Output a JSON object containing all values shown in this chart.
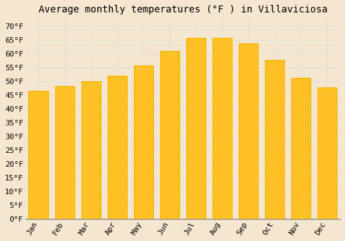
{
  "title": "Average monthly temperatures (°F ) in Villaviciosa",
  "months": [
    "Jan",
    "Feb",
    "Mar",
    "Apr",
    "May",
    "Jun",
    "Jul",
    "Aug",
    "Sep",
    "Oct",
    "Nov",
    "Dec"
  ],
  "values": [
    46.4,
    48.2,
    50.0,
    52.0,
    55.9,
    61.0,
    65.8,
    65.8,
    63.7,
    57.9,
    51.3,
    47.7
  ],
  "bar_color": "#FFC125",
  "bar_edge_color": "#FFB200",
  "background_color": "#F5E6D0",
  "grid_color": "#DDDDDD",
  "yticks": [
    0,
    5,
    10,
    15,
    20,
    25,
    30,
    35,
    40,
    45,
    50,
    55,
    60,
    65,
    70
  ],
  "ylim": [
    0,
    73
  ],
  "ylabel_suffix": "°F",
  "title_fontsize": 10,
  "tick_fontsize": 8,
  "font_family": "monospace"
}
